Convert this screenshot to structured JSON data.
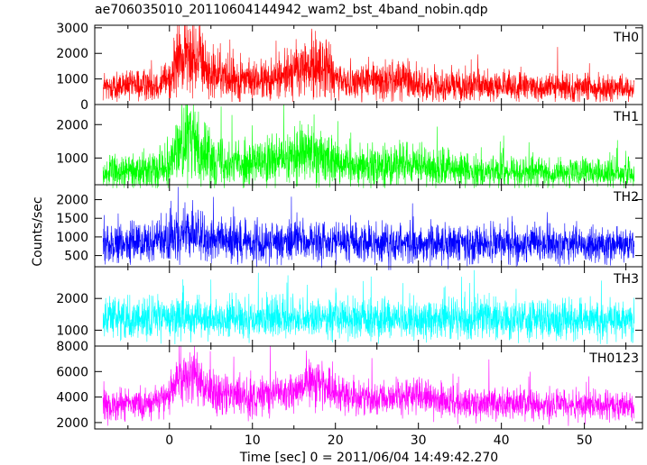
{
  "chart_data": [
    {
      "type": "line",
      "title": "ae706035010_20110604144942_wam2_bst_4band_nobin.qdp",
      "xlabel": "Time [sec] 0 = 2011/06/04 14:49:42.270",
      "ylabel": "Counts/sec",
      "xlim": [
        -9,
        57
      ],
      "x_ticks": [
        0,
        10,
        20,
        30,
        40,
        50
      ],
      "panels": [
        {
          "name": "TH0",
          "color": "#ff0000",
          "ylim": [
            0,
            3100
          ],
          "y_ticks": [
            0,
            1000,
            2000,
            3000
          ],
          "baseline": 700,
          "noise": 600,
          "floor": 100,
          "envelope": [
            {
              "x": -8,
              "y": 650
            },
            {
              "x": -2,
              "y": 800
            },
            {
              "x": 0,
              "y": 1000
            },
            {
              "x": 1,
              "y": 1700
            },
            {
              "x": 2,
              "y": 1900
            },
            {
              "x": 3,
              "y": 2000
            },
            {
              "x": 4,
              "y": 1500
            },
            {
              "x": 5,
              "y": 1200
            },
            {
              "x": 8,
              "y": 1000
            },
            {
              "x": 12,
              "y": 900
            },
            {
              "x": 15,
              "y": 1300
            },
            {
              "x": 17,
              "y": 1450
            },
            {
              "x": 19,
              "y": 1500
            },
            {
              "x": 20,
              "y": 900
            },
            {
              "x": 25,
              "y": 900
            },
            {
              "x": 29,
              "y": 1000
            },
            {
              "x": 30,
              "y": 750
            },
            {
              "x": 40,
              "y": 700
            },
            {
              "x": 50,
              "y": 650
            },
            {
              "x": 56,
              "y": 600
            }
          ]
        },
        {
          "name": "TH1",
          "color": "#00ff00",
          "ylim": [
            200,
            2600
          ],
          "y_ticks": [
            1000,
            2000
          ],
          "baseline": 600,
          "noise": 500,
          "floor": 100,
          "envelope": [
            {
              "x": -8,
              "y": 550
            },
            {
              "x": -2,
              "y": 650
            },
            {
              "x": 0,
              "y": 900
            },
            {
              "x": 1,
              "y": 1350
            },
            {
              "x": 2,
              "y": 1500
            },
            {
              "x": 3,
              "y": 1550
            },
            {
              "x": 4,
              "y": 1150
            },
            {
              "x": 6,
              "y": 950
            },
            {
              "x": 10,
              "y": 800
            },
            {
              "x": 15,
              "y": 1000
            },
            {
              "x": 17,
              "y": 1200
            },
            {
              "x": 19,
              "y": 1000
            },
            {
              "x": 22,
              "y": 750
            },
            {
              "x": 29,
              "y": 800
            },
            {
              "x": 35,
              "y": 620
            },
            {
              "x": 45,
              "y": 560
            },
            {
              "x": 56,
              "y": 520
            }
          ]
        },
        {
          "name": "TH2",
          "color": "#0000ff",
          "ylim": [
            200,
            2400
          ],
          "y_ticks": [
            500,
            1000,
            1500,
            2000
          ],
          "baseline": 850,
          "noise": 550,
          "floor": 100,
          "envelope": [
            {
              "x": -8,
              "y": 800
            },
            {
              "x": 0,
              "y": 900
            },
            {
              "x": 2,
              "y": 1150
            },
            {
              "x": 4,
              "y": 950
            },
            {
              "x": 10,
              "y": 850
            },
            {
              "x": 17,
              "y": 900
            },
            {
              "x": 30,
              "y": 820
            },
            {
              "x": 56,
              "y": 780
            }
          ]
        },
        {
          "name": "TH3",
          "color": "#00ffff",
          "ylim": [
            500,
            3000
          ],
          "y_ticks": [
            1000,
            2000
          ],
          "baseline": 1350,
          "noise": 650,
          "floor": 200,
          "envelope": [
            {
              "x": -8,
              "y": 1350
            },
            {
              "x": 10,
              "y": 1380
            },
            {
              "x": 30,
              "y": 1350
            },
            {
              "x": 56,
              "y": 1330
            }
          ]
        },
        {
          "name": "TH0123",
          "color": "#ff00ff",
          "ylim": [
            1500,
            8000
          ],
          "y_ticks": [
            2000,
            4000,
            6000,
            8000
          ],
          "baseline": 3300,
          "noise": 1200,
          "floor": 1600,
          "envelope": [
            {
              "x": -8,
              "y": 3300
            },
            {
              "x": -2,
              "y": 3500
            },
            {
              "x": 0,
              "y": 4000
            },
            {
              "x": 1,
              "y": 5200
            },
            {
              "x": 2,
              "y": 5600
            },
            {
              "x": 3,
              "y": 5800
            },
            {
              "x": 4,
              "y": 4800
            },
            {
              "x": 6,
              "y": 4200
            },
            {
              "x": 10,
              "y": 3900
            },
            {
              "x": 15,
              "y": 4600
            },
            {
              "x": 17,
              "y": 5100
            },
            {
              "x": 19,
              "y": 4900
            },
            {
              "x": 22,
              "y": 3900
            },
            {
              "x": 29,
              "y": 4100
            },
            {
              "x": 35,
              "y": 3500
            },
            {
              "x": 45,
              "y": 3400
            },
            {
              "x": 56,
              "y": 3300
            }
          ]
        }
      ]
    }
  ]
}
